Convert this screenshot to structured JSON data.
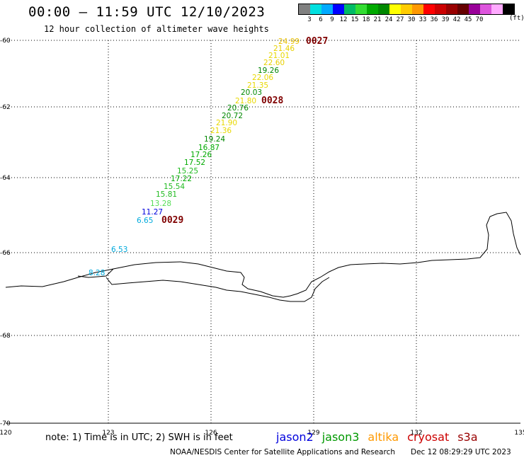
{
  "header": {
    "title": "00:00 – 11:59 UTC 12/10/2023",
    "subtitle": "12 hour collection of altimeter wave heights"
  },
  "legend": {
    "unit": "(ft)",
    "colors": [
      "#808080",
      "#00e0e0",
      "#00aaff",
      "#0000ff",
      "#00bb66",
      "#33dd33",
      "#00aa00",
      "#008800",
      "#ffff00",
      "#ffcc00",
      "#ff9900",
      "#ff0000",
      "#cc0000",
      "#990000",
      "#660000",
      "#990099",
      "#dd55dd",
      "#ffaaff",
      "#000000"
    ],
    "ticks": [
      "3",
      "6",
      "9",
      "12",
      "15",
      "18",
      "21",
      "24",
      "27",
      "30",
      "33",
      "36",
      "39",
      "42",
      "45",
      "70"
    ]
  },
  "map": {
    "lon_range": [
      120,
      135
    ],
    "lat_range": [
      -70,
      -60
    ],
    "lon_labels": [
      "120",
      "123",
      "126",
      "129",
      "132",
      "135"
    ],
    "lat_labels": [
      "-60",
      "-62",
      "-64",
      "-66",
      "-68",
      "-70"
    ],
    "passes": [
      {
        "label": "0027",
        "color": "#800000"
      },
      {
        "label": "0028",
        "color": "#800000"
      },
      {
        "label": "0029",
        "color": "#800000"
      }
    ],
    "observations": [
      {
        "v": "24.99",
        "c": "#e8c000"
      },
      {
        "v": "21.46",
        "c": "#e8d000"
      },
      {
        "v": "21.01",
        "c": "#e8d800"
      },
      {
        "v": "22.60",
        "c": "#e8d000"
      },
      {
        "v": "19.26",
        "c": "#008800"
      },
      {
        "v": "22.06",
        "c": "#e8d800"
      },
      {
        "v": "21.35",
        "c": "#e8d800"
      },
      {
        "v": "20.03",
        "c": "#008800"
      },
      {
        "v": "21.80",
        "c": "#e8d800"
      },
      {
        "v": "20.76",
        "c": "#008800"
      },
      {
        "v": "20.72",
        "c": "#008800"
      },
      {
        "v": "21.90",
        "c": "#e8d800"
      },
      {
        "v": "21.36",
        "c": "#e8d800"
      },
      {
        "v": "19.24",
        "c": "#008800"
      },
      {
        "v": "16.87",
        "c": "#00aa00"
      },
      {
        "v": "17.26",
        "c": "#00aa00"
      },
      {
        "v": "17.52",
        "c": "#00aa00"
      },
      {
        "v": "15.25",
        "c": "#22bb22"
      },
      {
        "v": "17.22",
        "c": "#00aa00"
      },
      {
        "v": "15.54",
        "c": "#22bb22"
      },
      {
        "v": "15.81",
        "c": "#22bb22"
      },
      {
        "v": "13.28",
        "c": "#55dd55"
      },
      {
        "v": "11.27",
        "c": "#0000dd"
      },
      {
        "v": "6.65",
        "c": "#00aadd"
      },
      {
        "v": "6.53",
        "c": "#00aadd"
      },
      {
        "v": "8.28",
        "c": "#00aadd"
      }
    ]
  },
  "footer": {
    "note": "note:  1) Time is in UTC;  2) SWH is in feet",
    "missions": [
      {
        "name": "jason2",
        "color": "#0000dd"
      },
      {
        "name": "jason3",
        "color": "#009900"
      },
      {
        "name": "altika",
        "color": "#ff9900"
      },
      {
        "name": "cryosat",
        "color": "#cc0000"
      },
      {
        "name": "s3a",
        "color": "#990000"
      }
    ],
    "credit": "NOAA/NESDIS Center for Satellite Applications and Research",
    "timestamp": "Dec 12 08:29:29 UTC 2023"
  }
}
